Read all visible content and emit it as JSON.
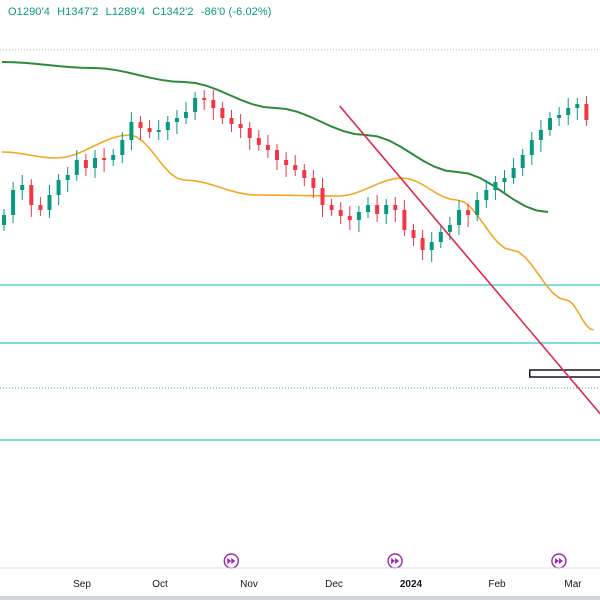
{
  "header": {
    "open": "O1290'4",
    "high": "H1347'2",
    "low": "L1289'4",
    "close": "C1342'2",
    "change": "-86'0 (-6.02%)"
  },
  "icons": {
    "event_marker": "fast-forward-circle-icon"
  },
  "colors": {
    "up_candle": "#089981",
    "down_candle": "#f23645",
    "ma_long": "#2e8b3a",
    "ma_mid": "#f5a623",
    "trendline": "#e0294a",
    "hlines": "#35c6c9",
    "event_marker": "#9c27b0"
  },
  "chart_data": {
    "type": "candlestick",
    "x_tick_labels": [
      "Sep",
      "Oct",
      "Nov",
      "Dec",
      "2024",
      "Feb",
      "Mar"
    ],
    "close_series": [
      {
        "t": 0,
        "c": 215
      },
      {
        "t": 2,
        "c": 190
      },
      {
        "t": 4,
        "c": 185
      },
      {
        "t": 6,
        "c": 205
      },
      {
        "t": 8,
        "c": 210
      },
      {
        "t": 10,
        "c": 195
      },
      {
        "t": 12,
        "c": 180
      },
      {
        "t": 14,
        "c": 175
      },
      {
        "t": 16,
        "c": 160
      },
      {
        "t": 18,
        "c": 168
      },
      {
        "t": 20,
        "c": 158
      },
      {
        "t": 22,
        "c": 160
      },
      {
        "t": 24,
        "c": 155
      },
      {
        "t": 26,
        "c": 140
      },
      {
        "t": 28,
        "c": 122
      },
      {
        "t": 30,
        "c": 128
      },
      {
        "t": 32,
        "c": 132
      },
      {
        "t": 34,
        "c": 130
      },
      {
        "t": 36,
        "c": 122
      },
      {
        "t": 38,
        "c": 118
      },
      {
        "t": 40,
        "c": 112
      },
      {
        "t": 42,
        "c": 98
      },
      {
        "t": 44,
        "c": 100
      },
      {
        "t": 46,
        "c": 108
      },
      {
        "t": 48,
        "c": 118
      },
      {
        "t": 50,
        "c": 124
      },
      {
        "t": 52,
        "c": 128
      },
      {
        "t": 54,
        "c": 138
      },
      {
        "t": 56,
        "c": 145
      },
      {
        "t": 58,
        "c": 150
      },
      {
        "t": 60,
        "c": 160
      },
      {
        "t": 62,
        "c": 165
      },
      {
        "t": 64,
        "c": 170
      },
      {
        "t": 66,
        "c": 178
      },
      {
        "t": 68,
        "c": 188
      },
      {
        "t": 70,
        "c": 205
      },
      {
        "t": 72,
        "c": 210
      },
      {
        "t": 74,
        "c": 216
      },
      {
        "t": 76,
        "c": 220
      },
      {
        "t": 78,
        "c": 212
      },
      {
        "t": 80,
        "c": 205
      },
      {
        "t": 82,
        "c": 214
      },
      {
        "t": 84,
        "c": 205
      },
      {
        "t": 86,
        "c": 210
      },
      {
        "t": 88,
        "c": 230
      },
      {
        "t": 90,
        "c": 238
      },
      {
        "t": 92,
        "c": 250
      },
      {
        "t": 94,
        "c": 242
      },
      {
        "t": 96,
        "c": 232
      },
      {
        "t": 98,
        "c": 225
      },
      {
        "t": 100,
        "c": 210
      },
      {
        "t": 102,
        "c": 215
      },
      {
        "t": 104,
        "c": 200
      },
      {
        "t": 106,
        "c": 190
      },
      {
        "t": 108,
        "c": 182
      },
      {
        "t": 110,
        "c": 178
      },
      {
        "t": 112,
        "c": 168
      },
      {
        "t": 114,
        "c": 155
      },
      {
        "t": 116,
        "c": 140
      },
      {
        "t": 118,
        "c": 130
      },
      {
        "t": 120,
        "c": 118
      },
      {
        "t": 122,
        "c": 115
      },
      {
        "t": 124,
        "c": 108
      },
      {
        "t": 126,
        "c": 104
      },
      {
        "t": 128,
        "c": 120
      }
    ],
    "reference_lines": [
      285,
      343,
      388,
      440
    ],
    "ma_long": [
      {
        "t": 0,
        "v": 62
      },
      {
        "t": 20,
        "v": 68
      },
      {
        "t": 40,
        "v": 82
      },
      {
        "t": 60,
        "v": 108
      },
      {
        "t": 80,
        "v": 135
      },
      {
        "t": 100,
        "v": 172
      },
      {
        "t": 120,
        "v": 212
      }
    ],
    "ma_mid": [
      {
        "t": 0,
        "v": 152
      },
      {
        "t": 12,
        "v": 158
      },
      {
        "t": 28,
        "v": 135
      },
      {
        "t": 40,
        "v": 180
      },
      {
        "t": 56,
        "v": 195
      },
      {
        "t": 74,
        "v": 196
      },
      {
        "t": 88,
        "v": 178
      },
      {
        "t": 100,
        "v": 200
      },
      {
        "t": 112,
        "v": 250
      },
      {
        "t": 124,
        "v": 300
      },
      {
        "t": 130,
        "v": 330
      }
    ],
    "trendline": [
      {
        "t": 74,
        "v": 106
      },
      {
        "t": 130,
        "v": 420
      }
    ],
    "event_markers_t": [
      46,
      82,
      118,
      130
    ],
    "zone_box": {
      "t0": 116,
      "t1": 130,
      "v0": 370,
      "v1": 377
    },
    "grid": false
  }
}
